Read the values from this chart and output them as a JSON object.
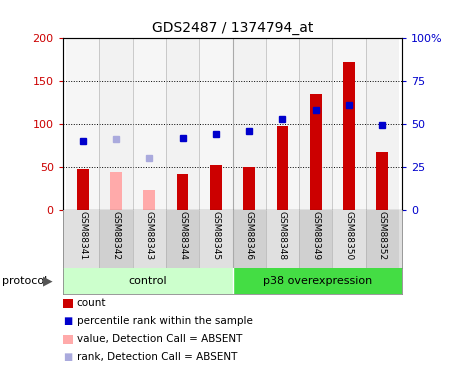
{
  "title": "GDS2487 / 1374794_at",
  "samples": [
    "GSM88341",
    "GSM88342",
    "GSM88343",
    "GSM88344",
    "GSM88345",
    "GSM88346",
    "GSM88348",
    "GSM88349",
    "GSM88350",
    "GSM88352"
  ],
  "bar_values": [
    47,
    44,
    23,
    42,
    52,
    50,
    97,
    135,
    172,
    67
  ],
  "bar_absent": [
    false,
    true,
    true,
    false,
    false,
    false,
    false,
    false,
    false,
    false
  ],
  "rank_values": [
    40,
    41,
    30,
    42,
    44,
    46,
    53,
    58,
    61,
    49
  ],
  "rank_absent": [
    false,
    true,
    true,
    false,
    false,
    false,
    false,
    false,
    false,
    false
  ],
  "bar_color_present": "#cc0000",
  "bar_color_absent": "#ffaaaa",
  "rank_color_present": "#0000cc",
  "rank_color_absent": "#aaaadd",
  "ylim_left": [
    0,
    200
  ],
  "ylim_right": [
    0,
    100
  ],
  "yticks_left": [
    0,
    50,
    100,
    150,
    200
  ],
  "yticks_right": [
    0,
    25,
    50,
    75,
    100
  ],
  "ytick_labels_right": [
    "0",
    "25",
    "50",
    "75",
    "100%"
  ],
  "control_label": "control",
  "p38_label": "p38 overexpression",
  "protocol_label": "protocol",
  "legend_items": [
    {
      "label": "count",
      "color": "#cc0000",
      "type": "rect"
    },
    {
      "label": "percentile rank within the sample",
      "color": "#0000cc",
      "type": "square"
    },
    {
      "label": "value, Detection Call = ABSENT",
      "color": "#ffaaaa",
      "type": "rect"
    },
    {
      "label": "rank, Detection Call = ABSENT",
      "color": "#aaaadd",
      "type": "square"
    }
  ],
  "background_color": "#ffffff",
  "bar_width": 0.35,
  "rank_marker_size": 5,
  "n_control": 5,
  "control_color": "#ccffcc",
  "p38_color": "#44dd44",
  "sample_bg_even": "#dddddd",
  "sample_bg_odd": "#cccccc"
}
